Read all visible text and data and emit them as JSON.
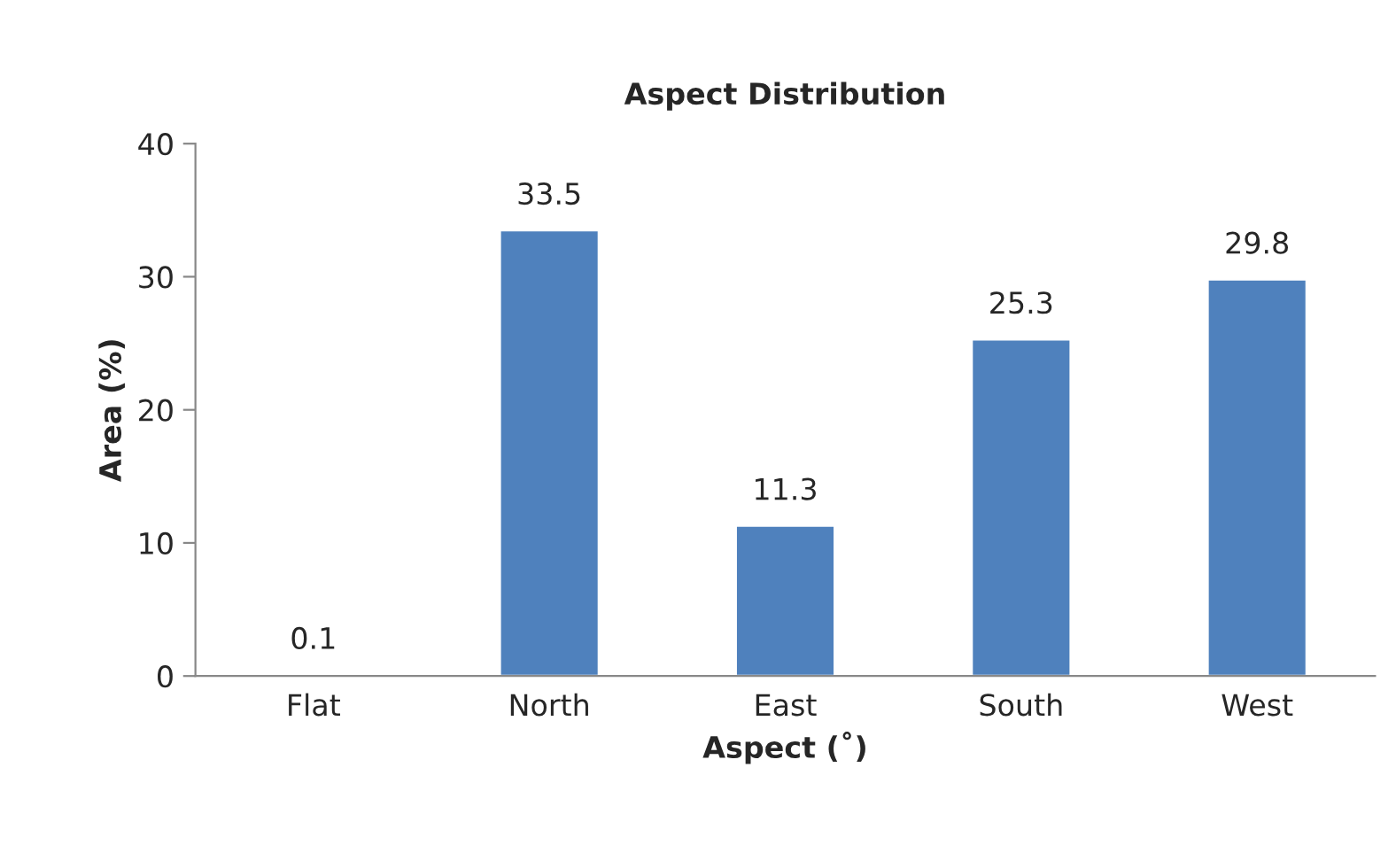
{
  "chart_data": {
    "type": "bar",
    "title": "Aspect Distribution",
    "xlabel": "Aspect (˚)",
    "ylabel": "Area (%)",
    "categories": [
      "Flat",
      "North",
      "East",
      "South",
      "West"
    ],
    "values": [
      0.1,
      33.5,
      11.3,
      25.3,
      29.8
    ],
    "color": "#4f81bd",
    "ylim": [
      0,
      40
    ],
    "yticks": [
      0,
      10,
      20,
      30,
      40
    ],
    "grid": false,
    "data_labels": true
  }
}
